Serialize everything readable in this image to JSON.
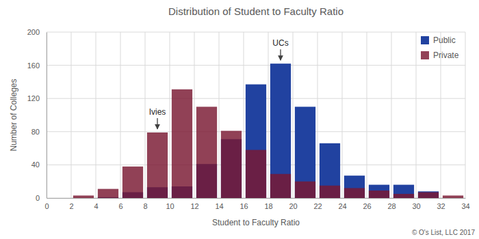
{
  "chart_data": {
    "type": "histogram",
    "title": "Distribution of Student to Faculty Ratio",
    "x_label": "Student to Faculty Ratio",
    "y_label": "Number of Colleges",
    "bins": [
      2,
      4,
      6,
      8,
      10,
      12,
      14,
      16,
      18,
      20,
      22,
      24,
      26,
      28,
      30,
      32,
      34
    ],
    "series": [
      {
        "name": "Public",
        "color": "#2142a0",
        "values": [
          0,
          1,
          7,
          13,
          14,
          41,
          71,
          137,
          162,
          110,
          66,
          27,
          16,
          16,
          8,
          0
        ]
      },
      {
        "name": "Private",
        "color": "#7a1832",
        "values": [
          3,
          11,
          38,
          79,
          131,
          110,
          81,
          58,
          29,
          20,
          15,
          12,
          9,
          5,
          7,
          3
        ]
      }
    ],
    "xlim": [
      0,
      34
    ],
    "xticks": [
      0,
      2,
      4,
      6,
      8,
      10,
      12,
      14,
      16,
      18,
      20,
      22,
      24,
      26,
      28,
      30,
      32,
      34
    ],
    "ylim": [
      0,
      200
    ],
    "yticks": [
      0,
      40,
      80,
      120,
      160,
      200
    ],
    "grid": true,
    "legend": "top-right",
    "annotations": [
      {
        "text": "Ivies",
        "x": 9
      },
      {
        "text": "UCs",
        "x": 19
      }
    ],
    "footnote": "© O's List, LLC 2017"
  }
}
